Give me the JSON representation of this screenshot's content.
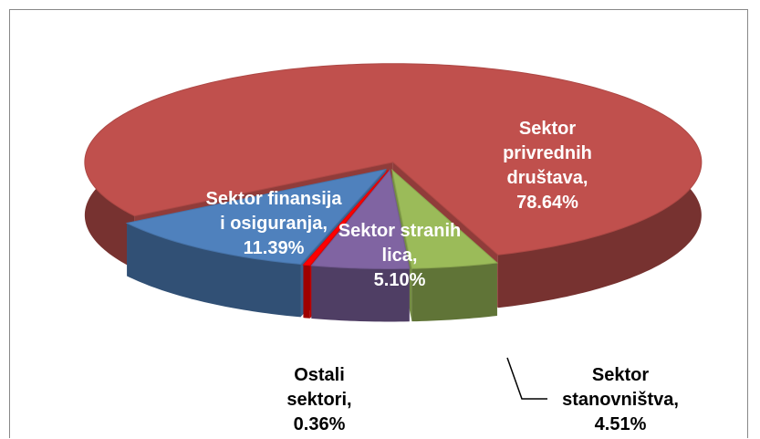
{
  "chart_data": {
    "type": "pie",
    "categories": [
      "Sektor privrednih društava,",
      "Sektor stanovništva,",
      "Sektor stranih lica,",
      "Ostali sektori,",
      "Sektor finansija i osiguranja,"
    ],
    "values": [
      78.64,
      4.51,
      5.1,
      0.36,
      11.39
    ],
    "value_labels": [
      "78.64%",
      "4.51%",
      "5.10%",
      "0.36%",
      "11.39%"
    ],
    "colors": [
      "#c0504d",
      "#9bbb59",
      "#8064a2",
      "#ff0000",
      "#4f81bd"
    ]
  }
}
